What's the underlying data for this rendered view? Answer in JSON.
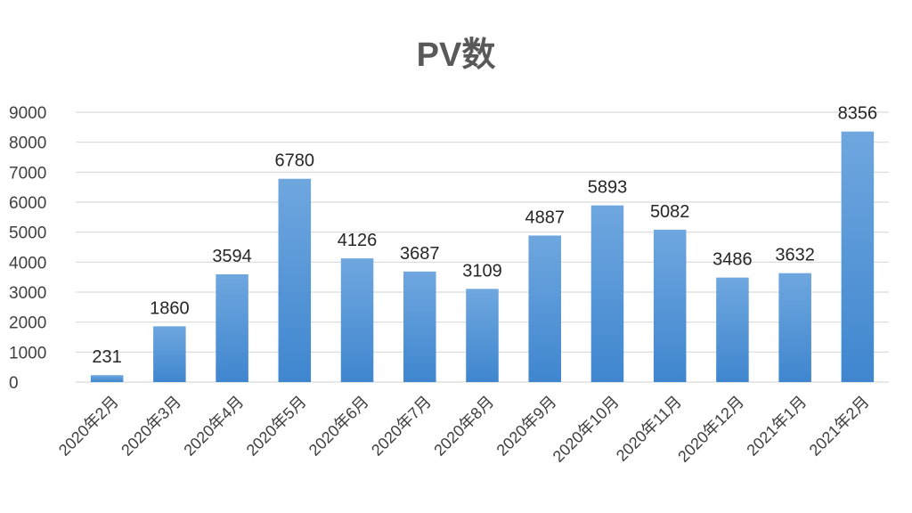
{
  "chart_data": {
    "type": "bar",
    "title": "PV数",
    "categories": [
      "2020年2月",
      "2020年3月",
      "2020年4月",
      "2020年5月",
      "2020年6月",
      "2020年7月",
      "2020年8月",
      "2020年9月",
      "2020年10月",
      "2020年11月",
      "2020年12月",
      "2021年1月",
      "2021年2月"
    ],
    "values": [
      231,
      1860,
      3594,
      6780,
      4126,
      3687,
      3109,
      4887,
      5893,
      5082,
      3486,
      3632,
      8356
    ],
    "ylim": [
      0,
      9000
    ],
    "yticks": [
      0,
      1000,
      2000,
      3000,
      4000,
      5000,
      6000,
      7000,
      8000,
      9000
    ],
    "grid": true,
    "legend": "none",
    "bar_color_top": "#6fa7df",
    "bar_color_bottom": "#3f86cf",
    "grid_color": "#d9d9d9"
  }
}
